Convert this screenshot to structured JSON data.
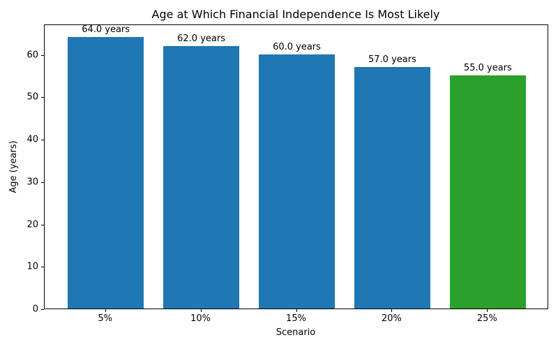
{
  "chart_data": {
    "type": "bar",
    "title": "Age at Which Financial Independence Is Most Likely",
    "xlabel": "Scenario",
    "ylabel": "Age (years)",
    "categories": [
      "5%",
      "10%",
      "15%",
      "20%",
      "25%"
    ],
    "values": [
      64.0,
      62.0,
      60.0,
      57.0,
      55.0
    ],
    "bar_labels": [
      "64.0 years",
      "62.0 years",
      "60.0 years",
      "57.0 years",
      "55.0 years"
    ],
    "bar_colors": [
      "#1f77b4",
      "#1f77b4",
      "#1f77b4",
      "#1f77b4",
      "#2ca02c"
    ],
    "ylim": [
      0,
      67.2
    ],
    "xlim": [
      -0.64,
      4.64
    ],
    "yticks": [
      0,
      10,
      20,
      30,
      40,
      50,
      60
    ],
    "bar_width_fraction": 0.8,
    "grid": false,
    "legend_position": "none"
  },
  "colors": {
    "bar_default": "#1f77b4",
    "bar_highlight": "#2ca02c",
    "text": "#000000",
    "background": "#ffffff"
  }
}
